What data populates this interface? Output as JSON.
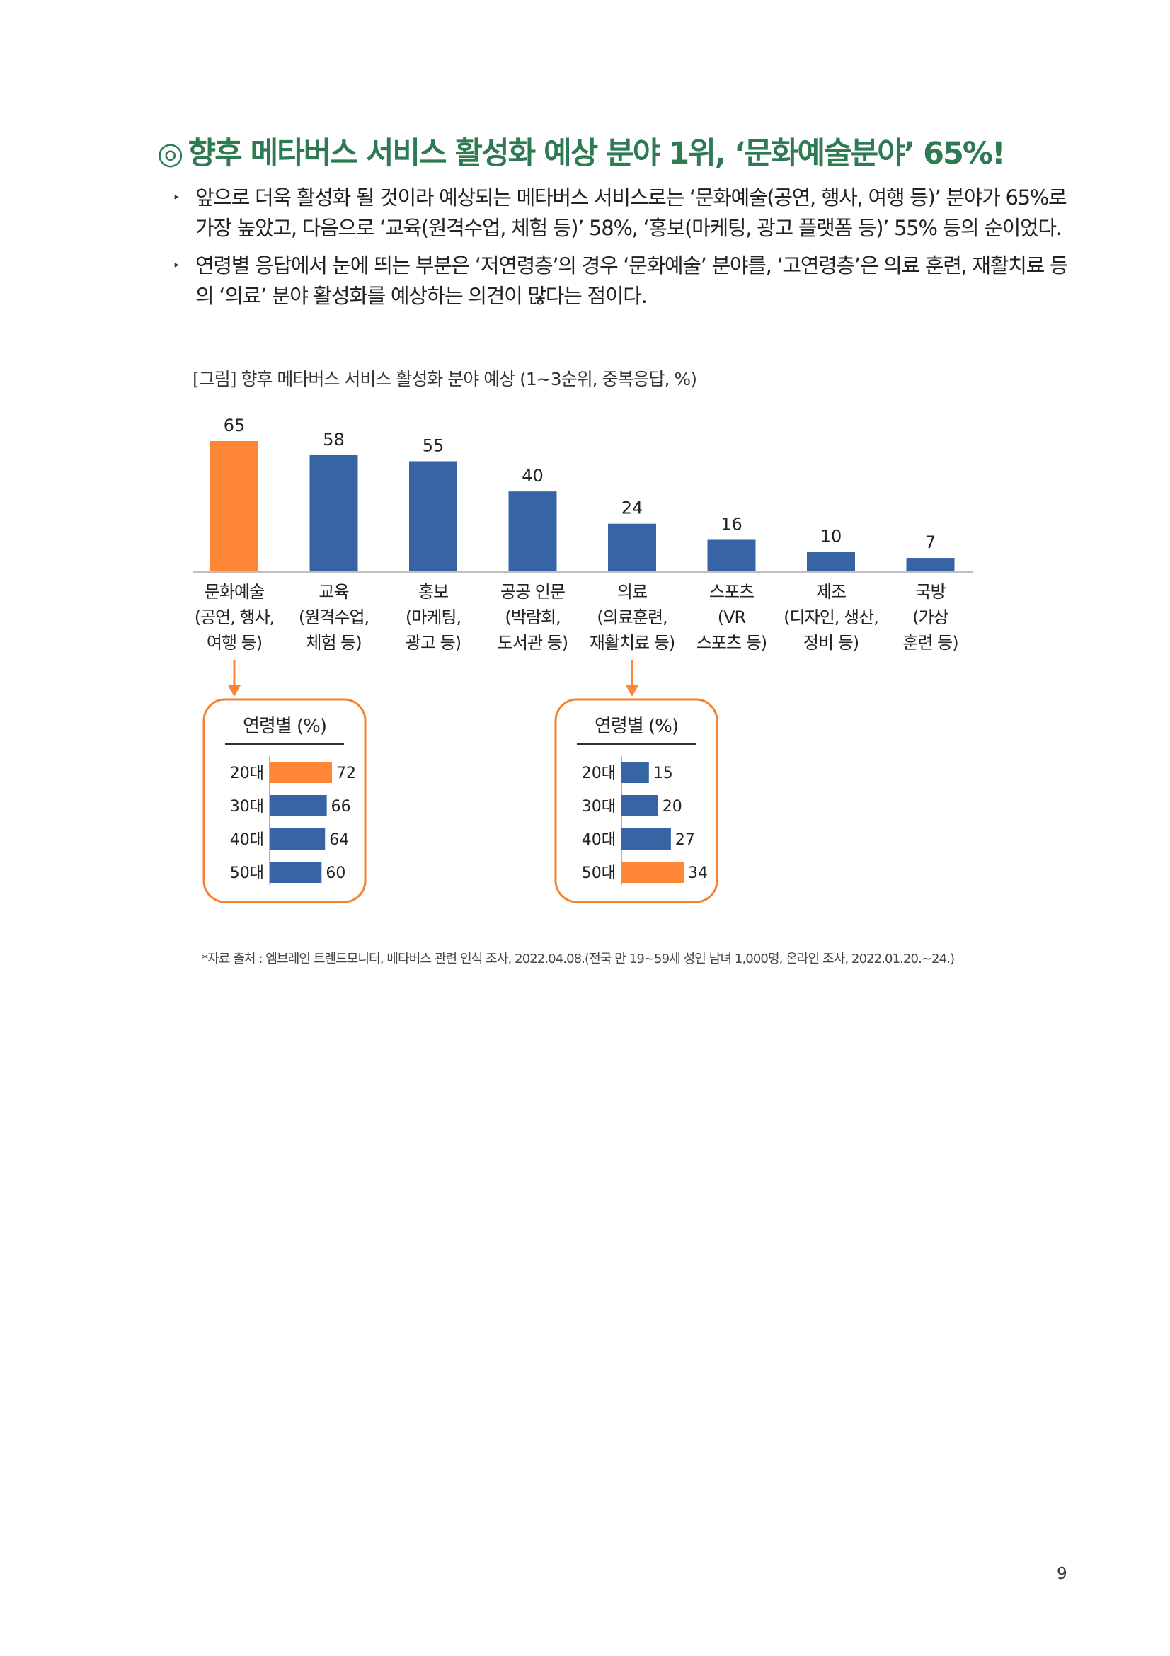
{
  "heading": {
    "mark": "◎",
    "text": "향후 메타버스 서비스 활성화 예상 분야 1위, ‘문화예술분야’ 65%!"
  },
  "bullets": [
    {
      "marker": "‣",
      "text": "앞으로 더욱 활성화 될 것이라 예상되는 메타버스 서비스로는 ‘문화예술(공연, 행사, 여행 등)’ 분야가 65%로 가장 높았고, 다음으로 ‘교육(원격수업, 체험 등)’ 58%, ‘홍보(마케팅, 광고 플랫폼 등)’ 55% 등의 순이었다."
    },
    {
      "marker": "‣",
      "text": "연령별 응답에서 눈에 띄는 부분은 ‘저연령층’의 경우 ‘문화예술’ 분야를, ‘고연령층’은 의료 훈련, 재활치료 등의 ‘의료’ 분야 활성화를 예상하는 의견이 많다는 점이다."
    }
  ],
  "figure_caption": "[그림] 향후 메타버스 서비스 활성화 분야 예상 (1~3순위, 중복응답, %)",
  "colors": {
    "highlight": "#fe8533",
    "bar": "#3765a4",
    "inset_border": "#f58132",
    "heading": "#2e7a52"
  },
  "chart_data": [
    {
      "type": "bar",
      "title": "",
      "categories": [
        [
          "문화예술",
          "(공연, 행사,",
          "여행 등)"
        ],
        [
          "교육",
          "(원격수업,",
          "체험 등)"
        ],
        [
          "홍보",
          "(마케팅,",
          "광고 등)"
        ],
        [
          "공공 인문",
          "(박람회,",
          "도서관 등)"
        ],
        [
          "의료",
          "(의료훈련,",
          "재활치료 등)"
        ],
        [
          "스포츠",
          "(VR",
          "스포츠 등)"
        ],
        [
          "제조",
          "(디자인, 생산,",
          "정비 등)"
        ],
        [
          "국방",
          "(가상",
          "훈련 등)"
        ]
      ],
      "values": [
        65,
        58,
        55,
        40,
        24,
        16,
        10,
        7
      ],
      "highlight_index": 0,
      "ylim": [
        0,
        65
      ],
      "grid": false
    },
    {
      "type": "bar",
      "orientation": "horizontal",
      "title": "연령별 (%)",
      "categories": [
        "20대",
        "30대",
        "40대",
        "50대"
      ],
      "values": [
        72,
        66,
        64,
        60
      ],
      "highlight_index": 0,
      "xlim": [
        0,
        72
      ]
    },
    {
      "type": "bar",
      "orientation": "horizontal",
      "title": "연령별 (%)",
      "categories": [
        "20대",
        "30대",
        "40대",
        "50대"
      ],
      "values": [
        15,
        20,
        27,
        34
      ],
      "highlight_index": 3,
      "xlim": [
        0,
        34
      ]
    }
  ],
  "source": "*자료 출처 : 엠브레인 트렌드모니터, 메타버스 관련 인식 조사, 2022.04.08.(전국 만 19~59세 성인 남녀 1,000명, 온라인 조사, 2022.01.20.~24.)",
  "page_number": "9"
}
